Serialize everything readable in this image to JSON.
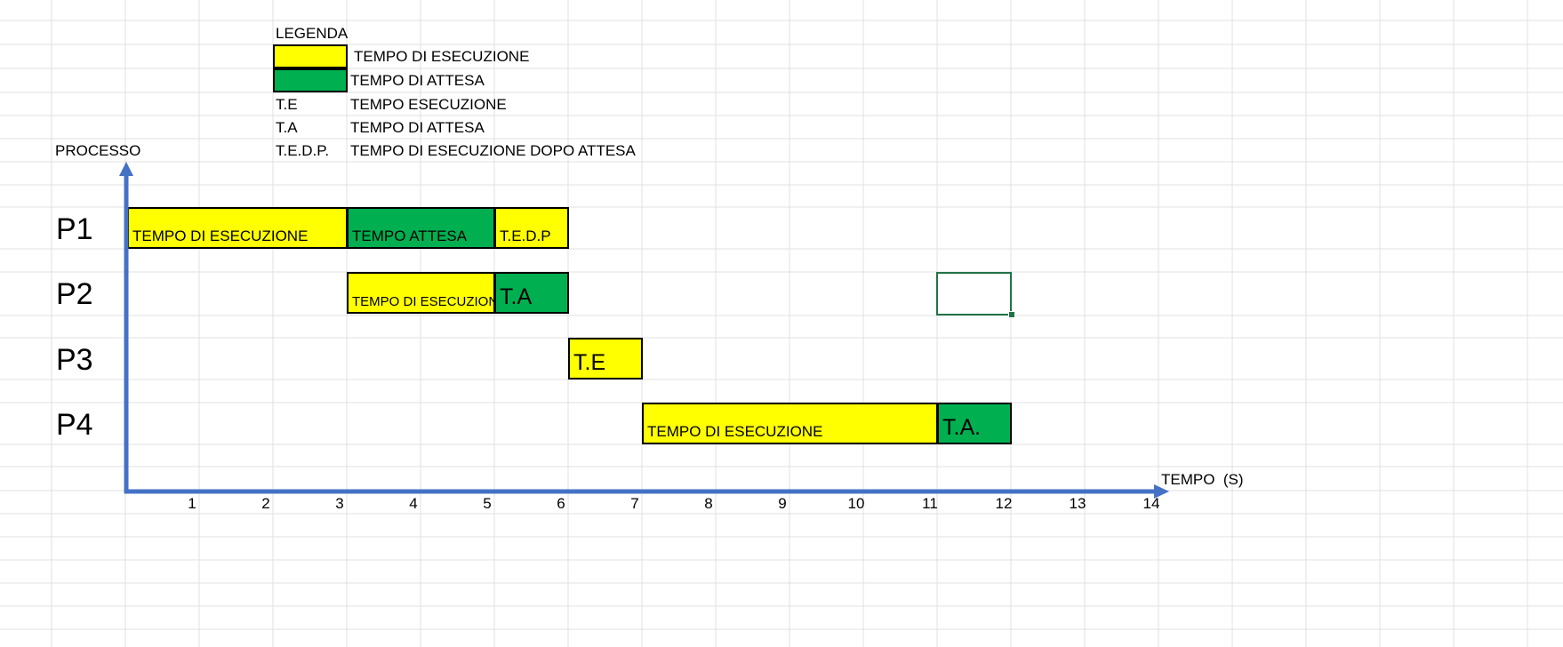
{
  "colors": {
    "execution": "#ffff00",
    "waiting": "#00b050",
    "axis": "#4472c4",
    "gridline": "#e1e1e1",
    "selection": "#217346"
  },
  "legend": {
    "title": "LEGENDA",
    "items": [
      {
        "color": "execution",
        "label": "TEMPO DI ESECUZIONE"
      },
      {
        "color": "waiting",
        "label": "TEMPO DI ATTESA"
      }
    ],
    "abbreviations": [
      {
        "abbr": "T.E",
        "meaning": "TEMPO ESECUZIONE"
      },
      {
        "abbr": "T.A",
        "meaning": "TEMPO DI ATTESA"
      },
      {
        "abbr": "T.E.D.P.",
        "meaning": "TEMPO DI ESECUZIONE DOPO ATTESA"
      }
    ]
  },
  "chart_data": {
    "type": "gantt",
    "ylabel": "PROCESSO",
    "xlabel": "TEMPO  (S)",
    "xlim": [
      0,
      14
    ],
    "x_ticks": [
      1,
      2,
      3,
      4,
      5,
      6,
      7,
      8,
      9,
      10,
      11,
      12,
      13,
      14
    ],
    "grid": true,
    "processes": [
      {
        "name": "P1",
        "segments": [
          {
            "start": 0,
            "end": 3,
            "kind": "execution",
            "label": "TEMPO DI ESECUZIONE"
          },
          {
            "start": 3,
            "end": 5,
            "kind": "waiting",
            "label": "TEMPO ATTESA"
          },
          {
            "start": 5,
            "end": 6,
            "kind": "execution",
            "label": "T.E.D.P"
          }
        ]
      },
      {
        "name": "P2",
        "segments": [
          {
            "start": 3,
            "end": 5,
            "kind": "execution",
            "label": "TEMPO DI ESECUZIONE"
          },
          {
            "start": 5,
            "end": 6,
            "kind": "waiting",
            "label": "T.A"
          }
        ]
      },
      {
        "name": "P3",
        "segments": [
          {
            "start": 6,
            "end": 7,
            "kind": "execution",
            "label": "T.E"
          }
        ]
      },
      {
        "name": "P4",
        "segments": [
          {
            "start": 7,
            "end": 11,
            "kind": "execution",
            "label": "TEMPO DI ESECUZIONE"
          },
          {
            "start": 11,
            "end": 12,
            "kind": "waiting",
            "label": "T.A."
          }
        ]
      }
    ]
  }
}
